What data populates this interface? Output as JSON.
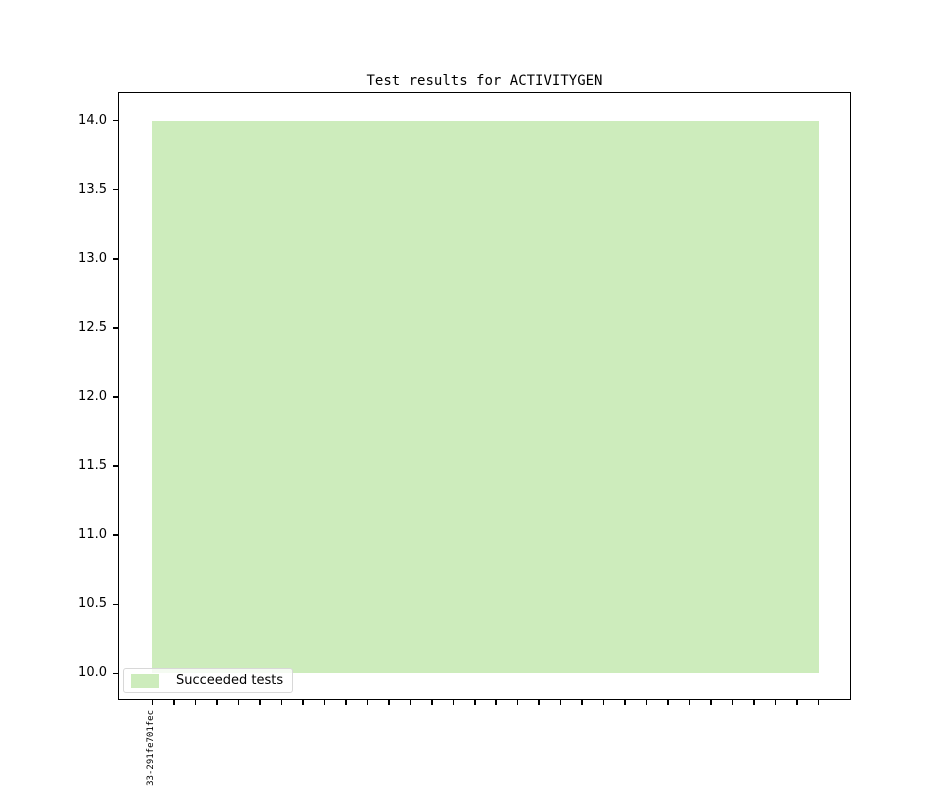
{
  "page": {
    "background": "#ffffff"
  },
  "chart_data": {
    "type": "area",
    "title": "Test results for ACTIVITYGEN",
    "xlabel": "",
    "ylabel": "",
    "ylim": [
      9.8,
      14.2
    ],
    "yticks": [
      "14.0",
      "13.5",
      "13.0",
      "12.5",
      "12.0",
      "11.5",
      "11.0",
      "10.5",
      "10.0"
    ],
    "x_margin_fraction": 0.05,
    "x_first_tick_label": "33-291fe701fec",
    "grid": false,
    "axis_color": "#000000",
    "series": [
      {
        "name": "Succeeded tests",
        "color": "#cdecbc",
        "base": 10,
        "values": [
          14,
          14,
          14,
          14,
          14,
          14,
          14,
          14,
          14,
          14,
          14,
          14,
          14,
          14,
          14,
          14,
          14,
          14,
          14,
          14,
          14,
          14,
          14,
          14,
          14,
          14,
          14,
          14,
          14,
          14,
          14,
          14
        ]
      }
    ],
    "legend": {
      "label": "Succeeded tests",
      "position": "lower left",
      "border_color": "#d8d8d8",
      "background": "rgba(255,255,255,0.8)"
    }
  }
}
